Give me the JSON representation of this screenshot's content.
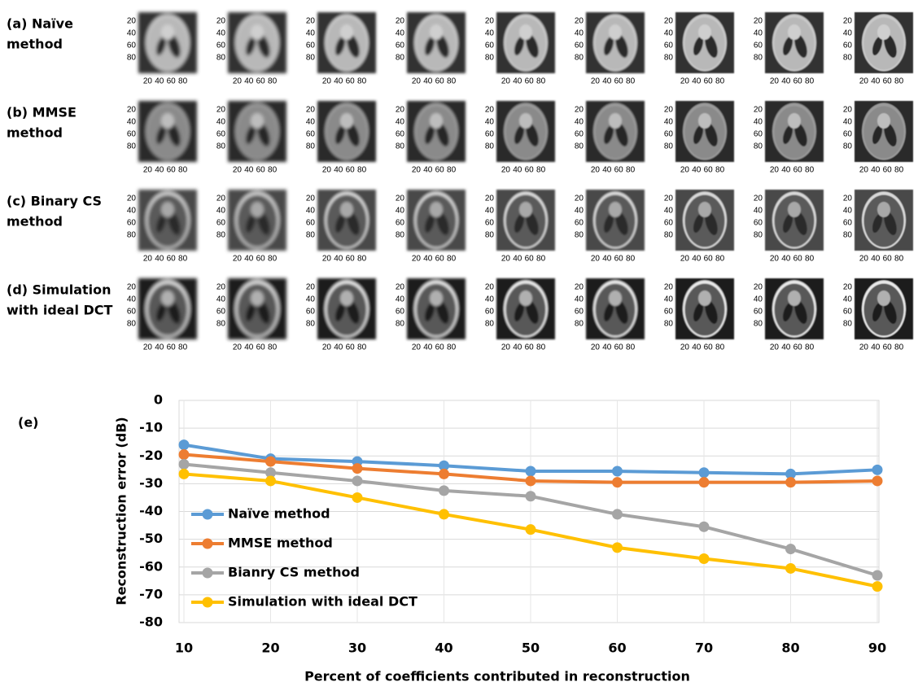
{
  "panels": [
    {
      "label_lines": [
        "(a) Naïve",
        "method"
      ]
    },
    {
      "label_lines": [
        "(b) MMSE",
        "method"
      ]
    },
    {
      "label_lines": [
        "(c) Binary CS",
        "method"
      ]
    },
    {
      "label_lines": [
        "(d) Simulation",
        "with ideal DCT"
      ]
    }
  ],
  "image_axis": {
    "xticks": [
      20,
      40,
      60,
      80
    ],
    "yticks": [
      20,
      40,
      60,
      80
    ]
  },
  "chart_data": {
    "type": "line",
    "label": "(e)",
    "x_label": "Percent of coefficients contributed in reconstruction",
    "y_label": "Reconstruction error (dB)",
    "x": [
      10,
      20,
      30,
      40,
      50,
      60,
      70,
      80,
      90
    ],
    "series": [
      {
        "name": "Naïve method",
        "color": "#5b9bd5",
        "values": [
          -16,
          -21,
          -22,
          -23.5,
          -25.5,
          -25.5,
          -26,
          -26.5,
          -25
        ]
      },
      {
        "name": "MMSE method",
        "color": "#ed7d31",
        "values": [
          -19.5,
          -22,
          -24.5,
          -26.5,
          -29,
          -29.5,
          -29.5,
          -29.5,
          -29
        ]
      },
      {
        "name": "Bianry CS method",
        "color": "#a5a5a5",
        "values": [
          -23,
          -26,
          -29,
          -32.5,
          -34.5,
          -41,
          -45.5,
          -53.5,
          -63
        ]
      },
      {
        "name": "Simulation with ideal DCT",
        "color": "#ffc000",
        "values": [
          -26.5,
          -29,
          -35,
          -41,
          -46.5,
          -53,
          -57,
          -60.5,
          -67
        ]
      }
    ],
    "xlim": [
      10,
      90
    ],
    "xticks": [
      10,
      20,
      30,
      40,
      50,
      60,
      70,
      80,
      90
    ],
    "ylim": [
      -80,
      0
    ],
    "yticks": [
      -80,
      -70,
      -60,
      -50,
      -40,
      -30,
      -20,
      -10,
      0
    ],
    "grid": true,
    "legend": "left"
  }
}
